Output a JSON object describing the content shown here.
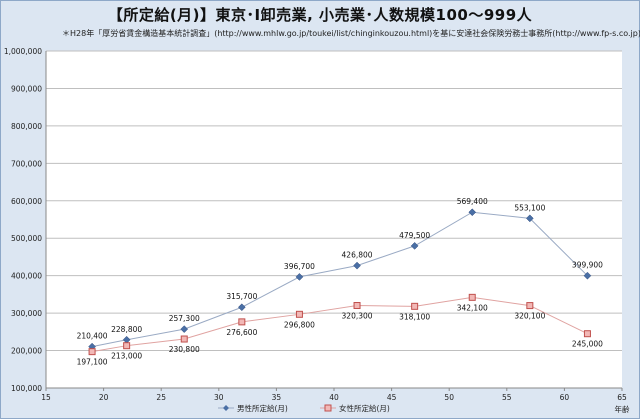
{
  "chart_data": {
    "type": "line",
    "title": "【所定給(月)】東京･I卸売業, 小売業･人数規模100～999人",
    "subtitle": "＊H28年「厚労省賃金構造基本統計調査」(http://www.mhlw.go.jp/toukei/list/chinginkouzou.html)を基に安達社会保険労務士事務所(http://www.fp-s.co.jp)が作成",
    "xlabel": "年齢",
    "ylabel": "",
    "xlim": [
      15,
      65
    ],
    "ylim": [
      100000,
      1000000
    ],
    "xticks": [
      "15",
      "20",
      "25",
      "30",
      "35",
      "40",
      "45",
      "50",
      "55",
      "60",
      "65"
    ],
    "yticks": [
      "100,000",
      "200,000",
      "300,000",
      "400,000",
      "500,000",
      "600,000",
      "700,000",
      "800,000",
      "900,000",
      "1,000,000"
    ],
    "grid": "horizontal",
    "legend_position": "bottom",
    "series": [
      {
        "name": "男性所定給(月)",
        "color": "#4a6fa5",
        "marker": "diamond",
        "x": [
          19,
          22,
          27,
          32,
          37,
          42,
          47,
          52,
          57,
          62
        ],
        "values": [
          210400,
          228800,
          257300,
          315700,
          396700,
          426800,
          479500,
          569400,
          553100,
          399900
        ],
        "labels": [
          "210,400",
          "228,800",
          "257,300",
          "315,700",
          "396,700",
          "426,800",
          "479,500",
          "569,400",
          "553,100",
          "399,900"
        ]
      },
      {
        "name": "女性所定給(月)",
        "color": "#c0504d",
        "marker": "square",
        "x": [
          19,
          22,
          27,
          32,
          37,
          42,
          47,
          52,
          57,
          62
        ],
        "values": [
          197100,
          213000,
          230800,
          276600,
          296800,
          320300,
          318100,
          342100,
          320100,
          245000
        ],
        "labels": [
          "197,100",
          "213,000",
          "230,800",
          "276,600",
          "296,800",
          "320,300",
          "318,100",
          "342,100",
          "320,100",
          "245,000"
        ]
      }
    ]
  }
}
